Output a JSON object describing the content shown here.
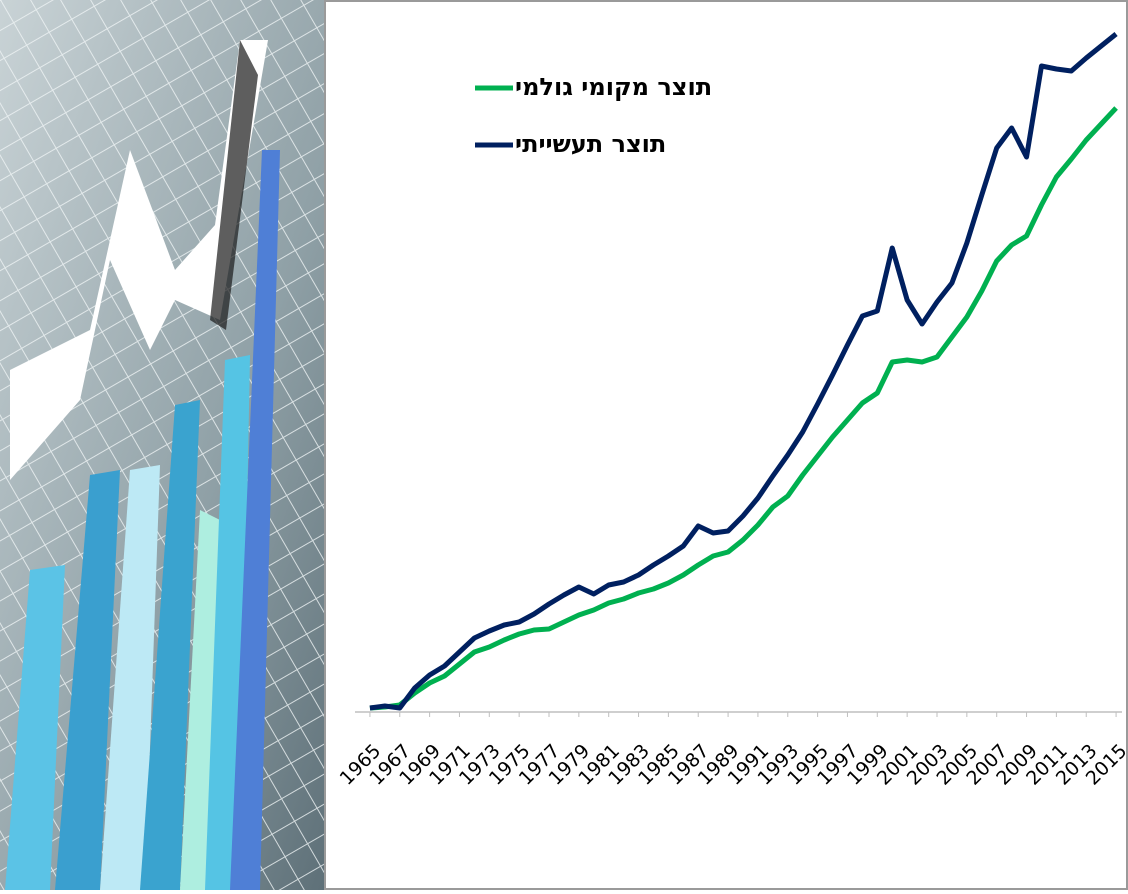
{
  "chart_data": {
    "type": "line",
    "x": [
      1965,
      1966,
      1967,
      1968,
      1969,
      1970,
      1971,
      1972,
      1973,
      1974,
      1975,
      1976,
      1977,
      1978,
      1979,
      1980,
      1981,
      1982,
      1983,
      1984,
      1985,
      1986,
      1987,
      1988,
      1989,
      1990,
      1991,
      1992,
      1993,
      1994,
      1995,
      1996,
      1997,
      1998,
      1999,
      2000,
      2001,
      2002,
      2003,
      2004,
      2005,
      2006,
      2007,
      2008,
      2009,
      2010,
      2011,
      2012,
      2013,
      2014,
      2015
    ],
    "xlim": [
      1964,
      2016
    ],
    "xticks": [
      1965,
      1967,
      1969,
      1971,
      1973,
      1975,
      1977,
      1979,
      1981,
      1983,
      1985,
      1987,
      1989,
      1991,
      1993,
      1995,
      1997,
      1999,
      2001,
      2003,
      2005,
      2007,
      2009,
      2011,
      2013,
      2015
    ],
    "ylim": [
      0,
      700
    ],
    "legend": "upper left",
    "series": [
      {
        "name": "תוצר מקומי גולמי",
        "color": "#00b050",
        "values": [
          4,
          5,
          7,
          19,
          29,
          36,
          48,
          60,
          65,
          72,
          78,
          82,
          83,
          90,
          97,
          102,
          109,
          113,
          119,
          123,
          129,
          137,
          147,
          156,
          160,
          172,
          187,
          205,
          216,
          237,
          256,
          275,
          292,
          309,
          319,
          350,
          352,
          350,
          355,
          375,
          395,
          421,
          451,
          467,
          476,
          507,
          535,
          553,
          572,
          588,
          604
        ]
      },
      {
        "name": "תוצר תעשייתי",
        "color": "#002060",
        "values": [
          4,
          6,
          4,
          24,
          37,
          46,
          60,
          74,
          81,
          87,
          90,
          98,
          108,
          117,
          125,
          118,
          127,
          130,
          137,
          147,
          156,
          166,
          186,
          179,
          181,
          196,
          214,
          236,
          257,
          280,
          308,
          337,
          367,
          396,
          401,
          464,
          412,
          388,
          410,
          429,
          469,
          517,
          564,
          584,
          555,
          646,
          643,
          641,
          654,
          666,
          678
        ]
      }
    ]
  }
}
